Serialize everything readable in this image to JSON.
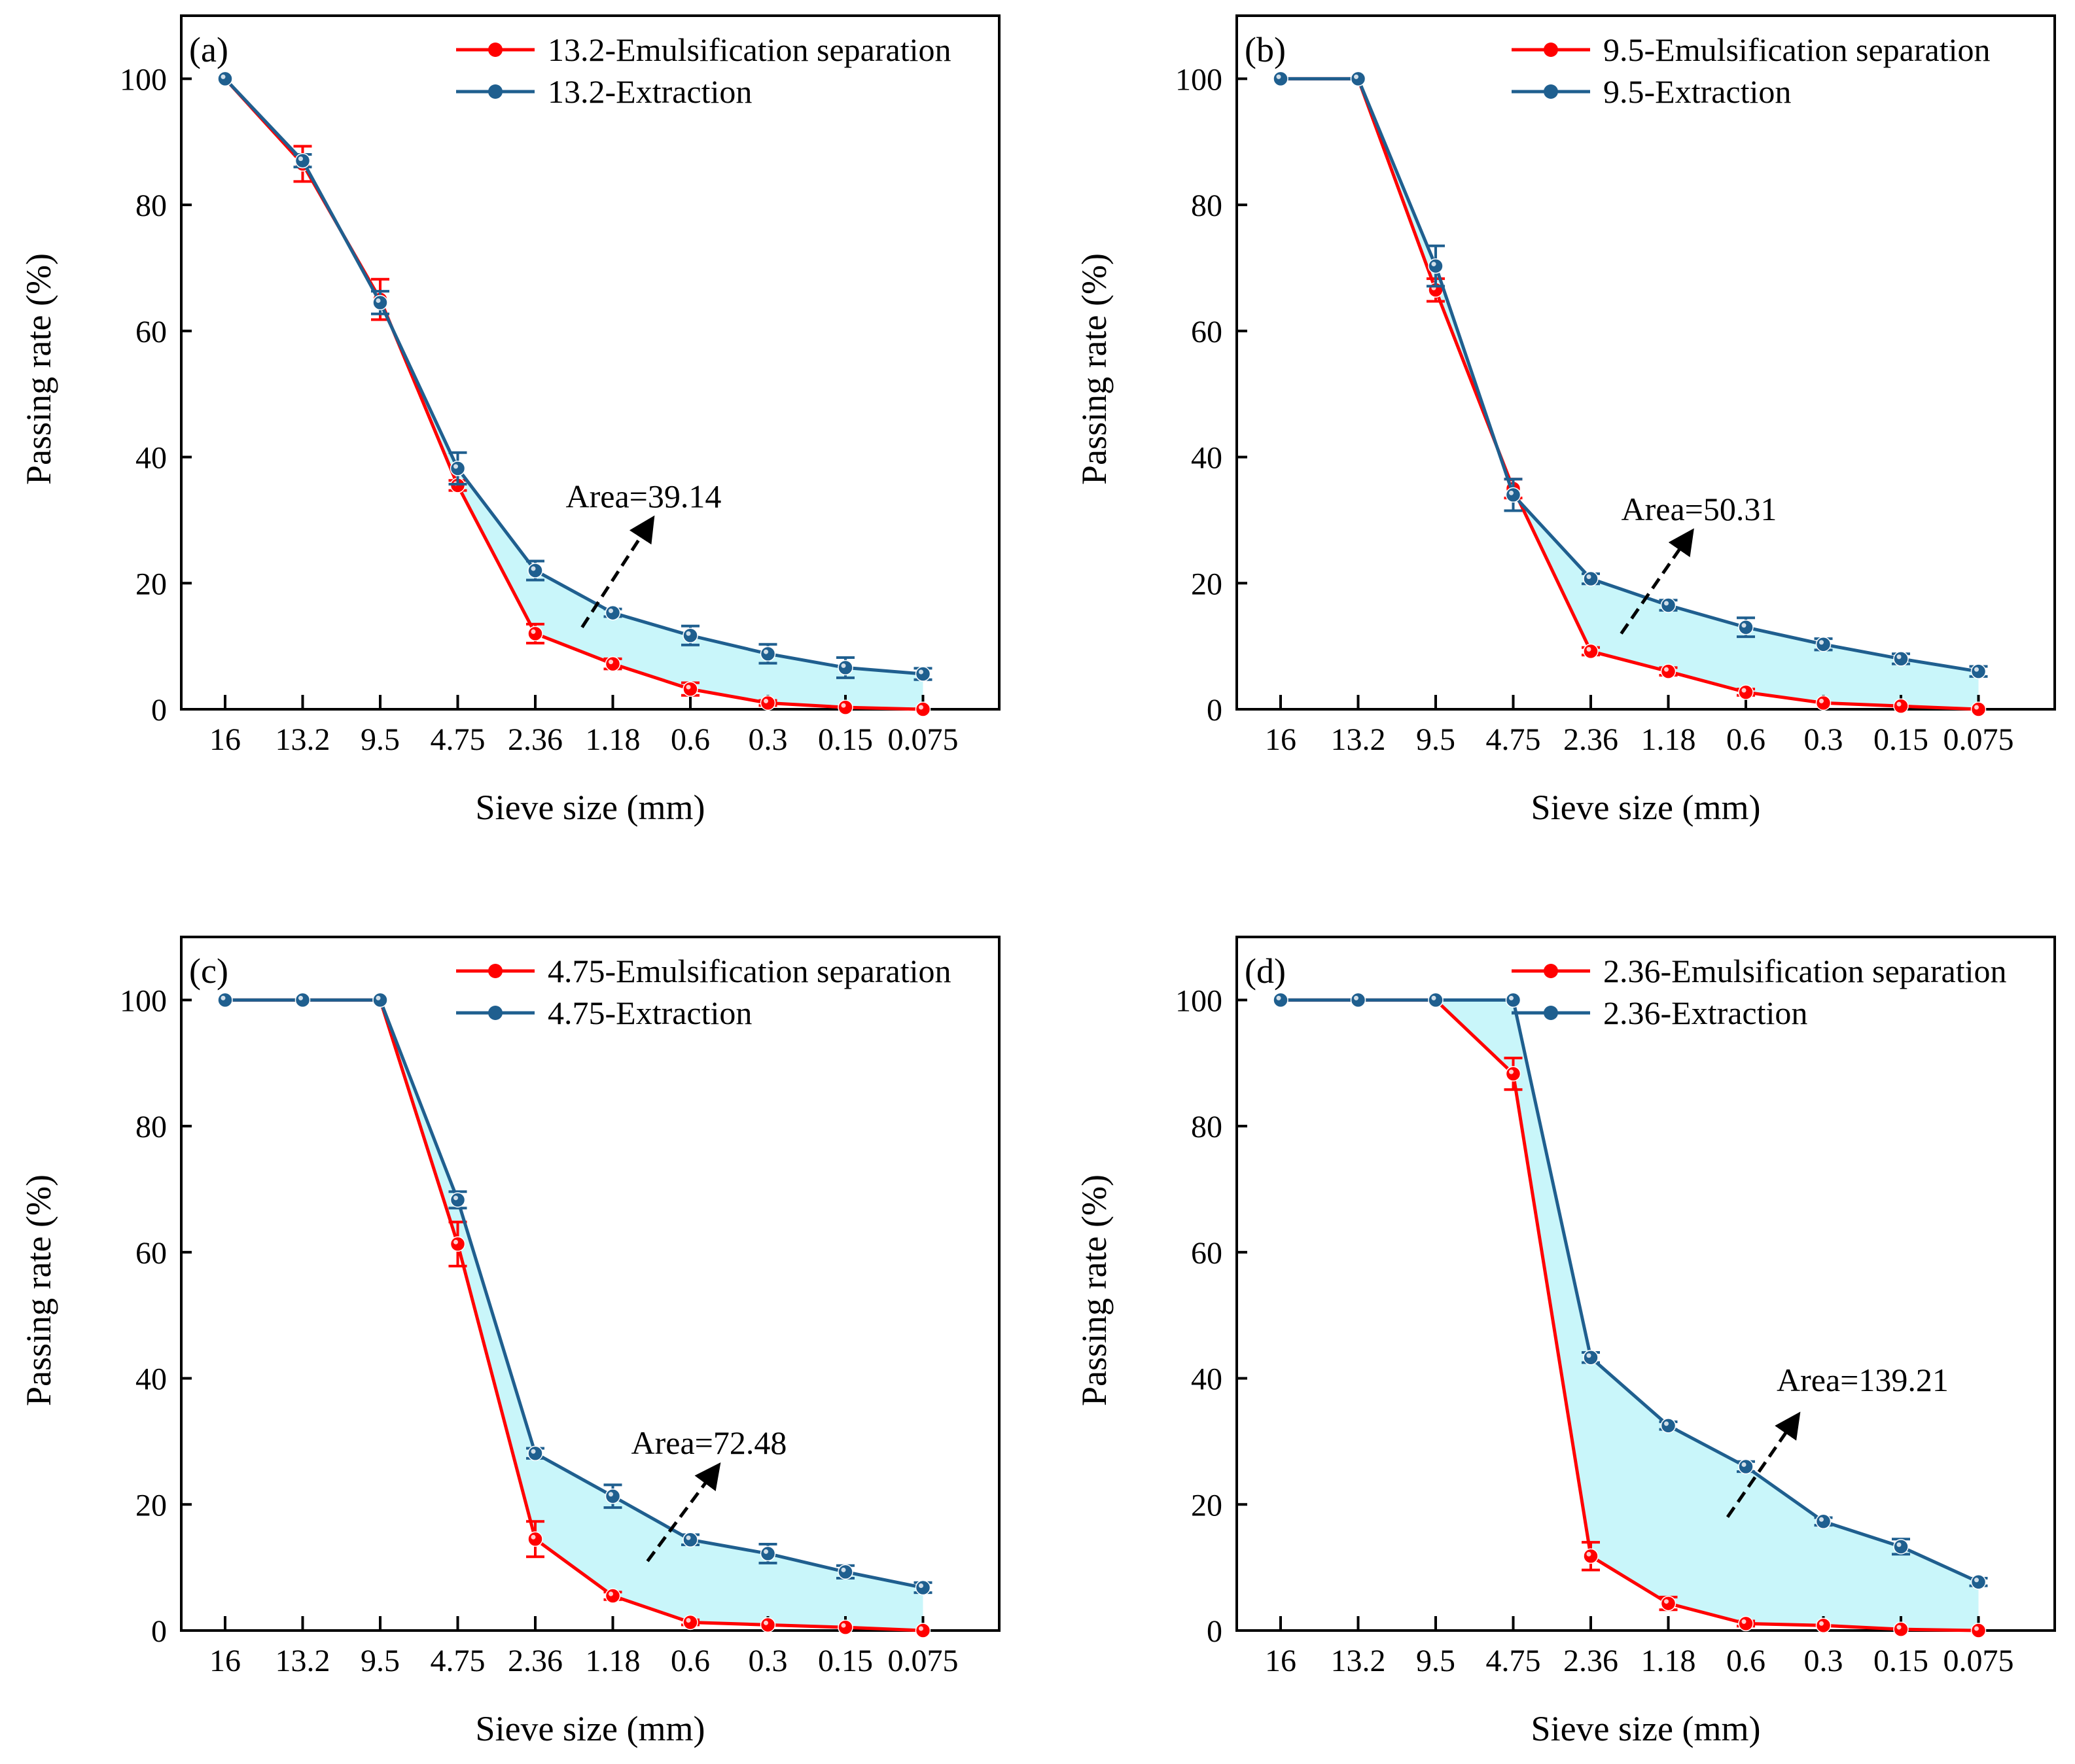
{
  "chart_data": [
    {
      "type": "line",
      "panel_label": "(a)",
      "xlabel": "Sieve size (mm)",
      "ylabel": "Passing rate (%)",
      "categories": [
        "16",
        "13.2",
        "9.5",
        "4.75",
        "2.36",
        "1.18",
        "0.6",
        "0.3",
        "0.15",
        "0.075"
      ],
      "ylim": [
        0,
        110
      ],
      "yticks": [
        0,
        20,
        40,
        60,
        80,
        100
      ],
      "legend_position": "top-right",
      "annotation": "Area=39.14",
      "series": [
        {
          "name": "13.2-Emulsification separation",
          "color": "#ff0000",
          "values": [
            100,
            86.5,
            65,
            35.5,
            12,
            7.2,
            3.2,
            1,
            0.3,
            0
          ],
          "errors": [
            0,
            2.8,
            3.2,
            0.8,
            1.5,
            0.8,
            1,
            0.4,
            0.3,
            0.2
          ]
        },
        {
          "name": "13.2-Extraction",
          "color": "#1f5f8f",
          "values": [
            100,
            87,
            64.5,
            38.2,
            22,
            15.3,
            11.7,
            8.8,
            6.6,
            5.6
          ],
          "errors": [
            0,
            1,
            1.8,
            2.5,
            1.5,
            0.6,
            1.5,
            1.5,
            1.6,
            0.9
          ]
        }
      ]
    },
    {
      "type": "line",
      "panel_label": "(b)",
      "xlabel": "Sieve size (mm)",
      "ylabel": "Passing rate (%)",
      "categories": [
        "16",
        "13.2",
        "9.5",
        "4.75",
        "2.36",
        "1.18",
        "0.6",
        "0.3",
        "0.15",
        "0.075"
      ],
      "ylim": [
        0,
        110
      ],
      "yticks": [
        0,
        20,
        40,
        60,
        80,
        100
      ],
      "legend_position": "top-right",
      "annotation": "Area=50.31",
      "series": [
        {
          "name": "9.5-Emulsification separation",
          "color": "#ff0000",
          "values": [
            100,
            100,
            66.5,
            35,
            9.2,
            6,
            2.7,
            1,
            0.5,
            0
          ],
          "errors": [
            0,
            0,
            1.8,
            1.5,
            0.6,
            0.6,
            0.5,
            0.3,
            0.3,
            0.2
          ]
        },
        {
          "name": "9.5-Extraction",
          "color": "#1f5f8f",
          "values": [
            100,
            100,
            70.3,
            34,
            20.7,
            16.5,
            13,
            10.3,
            8,
            6
          ],
          "errors": [
            0,
            0,
            3.2,
            2.5,
            0.8,
            0.8,
            1.5,
            0.9,
            0.8,
            0.8
          ]
        }
      ]
    },
    {
      "type": "line",
      "panel_label": "(c)",
      "xlabel": "Sieve size (mm)",
      "ylabel": "Passing rate (%)",
      "categories": [
        "16",
        "13.2",
        "9.5",
        "4.75",
        "2.36",
        "1.18",
        "0.6",
        "0.3",
        "0.15",
        "0.075"
      ],
      "ylim": [
        0,
        110
      ],
      "yticks": [
        0,
        20,
        40,
        60,
        80,
        100
      ],
      "legend_position": "top-right",
      "annotation": "Area=72.48",
      "series": [
        {
          "name": "4.75-Emulsification separation",
          "color": "#ff0000",
          "values": [
            100,
            100,
            100,
            61.3,
            14.5,
            5.5,
            1.3,
            0.9,
            0.5,
            0
          ],
          "errors": [
            0,
            0,
            0,
            3.5,
            2.8,
            0.6,
            0.4,
            0.3,
            0.3,
            0.2
          ]
        },
        {
          "name": "4.75-Extraction",
          "color": "#1f5f8f",
          "values": [
            100,
            100,
            100,
            68.3,
            28.1,
            21.3,
            14.4,
            12.2,
            9.3,
            6.8
          ],
          "errors": [
            0,
            0,
            0,
            1.3,
            0.8,
            1.8,
            0.8,
            1.5,
            1,
            0.8
          ]
        }
      ]
    },
    {
      "type": "line",
      "panel_label": "(d)",
      "xlabel": "Sieve size (mm)",
      "ylabel": "Passing rate (%)",
      "categories": [
        "16",
        "13.2",
        "9.5",
        "4.75",
        "2.36",
        "1.18",
        "0.6",
        "0.3",
        "0.15",
        "0.075"
      ],
      "ylim": [
        0,
        110
      ],
      "yticks": [
        0,
        20,
        40,
        60,
        80,
        100
      ],
      "legend_position": "top-right",
      "annotation": "Area=139.21",
      "series": [
        {
          "name": "2.36-Emulsification separation",
          "color": "#ff0000",
          "values": [
            100,
            100,
            100,
            88.3,
            11.8,
            4.3,
            1.1,
            0.8,
            0.2,
            0
          ],
          "errors": [
            0,
            0,
            0,
            2.5,
            2.2,
            1,
            0.4,
            0.3,
            0.3,
            0.2
          ]
        },
        {
          "name": "2.36-Extraction",
          "color": "#1f5f8f",
          "values": [
            100,
            100,
            100,
            100,
            43.3,
            32.5,
            26,
            17.3,
            13.3,
            7.7
          ],
          "errors": [
            0,
            0,
            0,
            0,
            0.8,
            0.6,
            0.8,
            0.6,
            1.2,
            0.6
          ]
        }
      ]
    }
  ],
  "fill_color": "#c9f6fa"
}
